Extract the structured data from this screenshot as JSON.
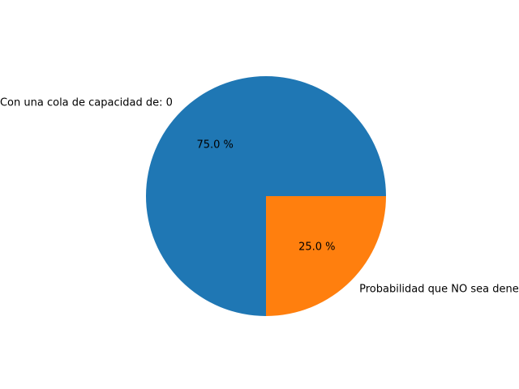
{
  "chart_data": {
    "type": "pie",
    "title": "",
    "start_angle_deg": 0,
    "direction": "counterclockwise",
    "slices": [
      {
        "label": "Con una cola de capacidad de: 0",
        "value": 75.0,
        "pct_label": "75.0 %",
        "color": "#1f77b4"
      },
      {
        "label": "Probabilidad que NO sea denegada",
        "value": 25.0,
        "pct_label": "25.0 %",
        "color": "#ff7f0e"
      }
    ]
  }
}
